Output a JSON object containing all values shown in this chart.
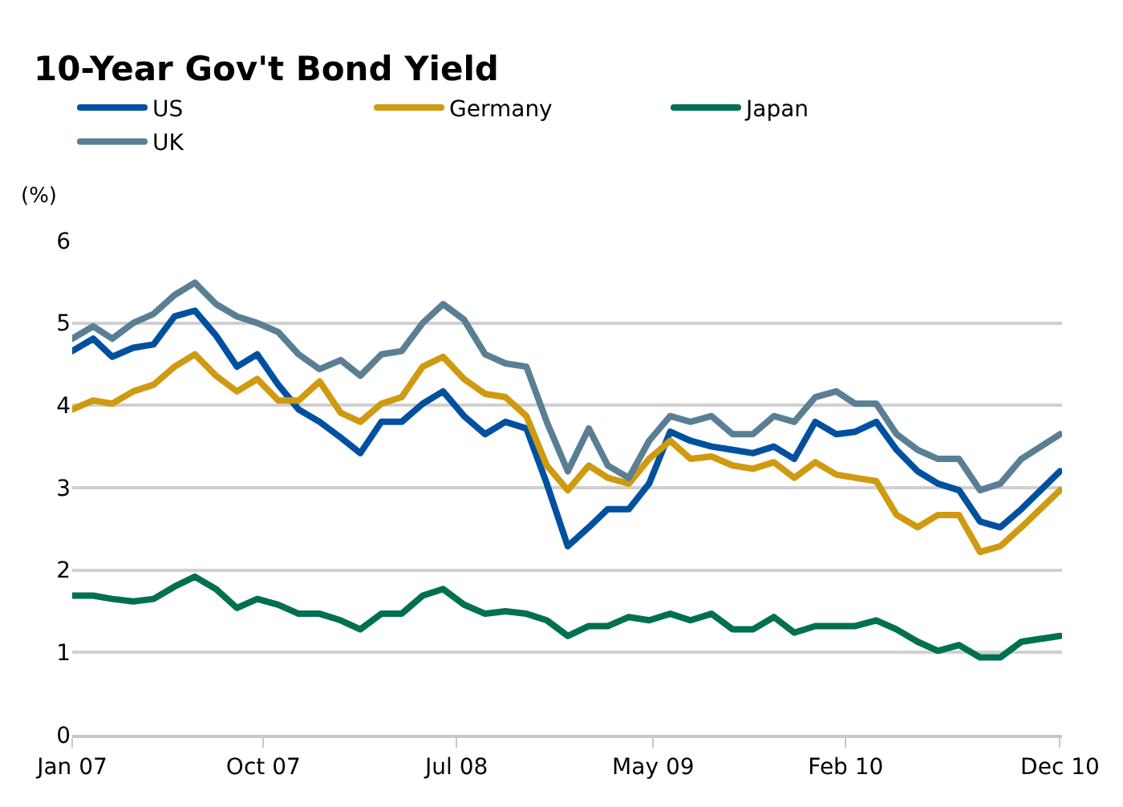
{
  "chart_data": {
    "type": "line",
    "title": "10-Year Gov't Bond Yield",
    "ylabel": "(%)",
    "x": [
      "2007-01",
      "2007-02",
      "2007-03",
      "2007-04",
      "2007-05",
      "2007-06",
      "2007-07",
      "2007-08",
      "2007-09",
      "2007-10",
      "2007-11",
      "2007-12",
      "2008-01",
      "2008-02",
      "2008-03",
      "2008-04",
      "2008-05",
      "2008-06",
      "2008-07",
      "2008-08",
      "2008-09",
      "2008-10",
      "2008-11",
      "2008-12",
      "2009-01",
      "2009-02",
      "2009-03",
      "2009-04",
      "2009-05",
      "2009-06",
      "2009-07",
      "2009-08",
      "2009-09",
      "2009-10",
      "2009-11",
      "2009-12",
      "2010-01",
      "2010-02",
      "2010-03",
      "2010-04",
      "2010-05",
      "2010-06",
      "2010-07",
      "2010-08",
      "2010-09",
      "2010-10",
      "2010-11",
      "2010-12-28"
    ],
    "series": [
      {
        "name": "US",
        "color": "#0050a0",
        "values": [
          4.66,
          4.81,
          4.59,
          4.7,
          4.74,
          5.08,
          5.15,
          4.85,
          4.47,
          4.62,
          4.25,
          3.95,
          3.8,
          3.61,
          3.42,
          3.8,
          3.8,
          4.02,
          4.17,
          3.87,
          3.65,
          3.8,
          3.72,
          3.05,
          2.29,
          2.52,
          2.74,
          2.74,
          3.05,
          3.68,
          3.57,
          3.5,
          3.46,
          3.42,
          3.5,
          3.35,
          3.8,
          3.65,
          3.68,
          3.8,
          3.46,
          3.2,
          3.05,
          2.97,
          2.59,
          2.52,
          2.74,
          3.2
        ]
      },
      {
        "name": "Germany",
        "color": "#d09a10",
        "values": [
          3.95,
          4.06,
          4.02,
          4.17,
          4.25,
          4.47,
          4.62,
          4.36,
          4.17,
          4.32,
          4.06,
          4.06,
          4.29,
          3.91,
          3.8,
          4.02,
          4.1,
          4.47,
          4.59,
          4.32,
          4.14,
          4.1,
          3.87,
          3.27,
          2.97,
          3.27,
          3.12,
          3.05,
          3.35,
          3.57,
          3.35,
          3.38,
          3.27,
          3.23,
          3.31,
          3.12,
          3.31,
          3.16,
          3.12,
          3.08,
          2.67,
          2.52,
          2.67,
          2.67,
          2.22,
          2.29,
          2.52,
          2.97
        ]
      },
      {
        "name": "Japan",
        "color": "#007050",
        "values": [
          1.69,
          1.69,
          1.65,
          1.62,
          1.65,
          1.8,
          1.92,
          1.77,
          1.54,
          1.65,
          1.58,
          1.47,
          1.47,
          1.39,
          1.28,
          1.47,
          1.47,
          1.69,
          1.77,
          1.58,
          1.47,
          1.5,
          1.47,
          1.39,
          1.2,
          1.32,
          1.32,
          1.43,
          1.39,
          1.47,
          1.39,
          1.47,
          1.28,
          1.28,
          1.43,
          1.24,
          1.32,
          1.32,
          1.32,
          1.39,
          1.28,
          1.13,
          1.02,
          1.09,
          0.94,
          0.94,
          1.13,
          1.2
        ]
      },
      {
        "name": "UK",
        "color": "#5a7f94",
        "values": [
          4.81,
          4.96,
          4.81,
          5.0,
          5.11,
          5.34,
          5.49,
          5.23,
          5.08,
          5.0,
          4.89,
          4.62,
          4.44,
          4.55,
          4.36,
          4.62,
          4.66,
          5.0,
          5.23,
          5.04,
          4.62,
          4.51,
          4.47,
          3.8,
          3.2,
          3.72,
          3.27,
          3.12,
          3.57,
          3.87,
          3.8,
          3.87,
          3.65,
          3.65,
          3.87,
          3.8,
          4.1,
          4.17,
          4.02,
          4.02,
          3.65,
          3.46,
          3.35,
          3.35,
          2.97,
          3.05,
          3.35,
          3.65
        ]
      }
    ],
    "xlim": [
      "2007-01-01",
      "2010-12-31"
    ],
    "xticks": [
      {
        "value": "2007-01-01",
        "label": "Jan 07"
      },
      {
        "value": "2007-10-10",
        "label": "Oct 07"
      },
      {
        "value": "2008-07-21",
        "label": "Jul 08"
      },
      {
        "value": "2009-05-07",
        "label": "May 09"
      },
      {
        "value": "2010-02-15",
        "label": "Feb 10"
      },
      {
        "value": "2010-12-28",
        "label": "Dec 10"
      }
    ],
    "ylim": [
      0,
      6
    ],
    "yticks": [
      0,
      1,
      2,
      3,
      4,
      5,
      6
    ],
    "grid": "y",
    "legend": "top left",
    "marker": "none",
    "line_style": "solid"
  }
}
